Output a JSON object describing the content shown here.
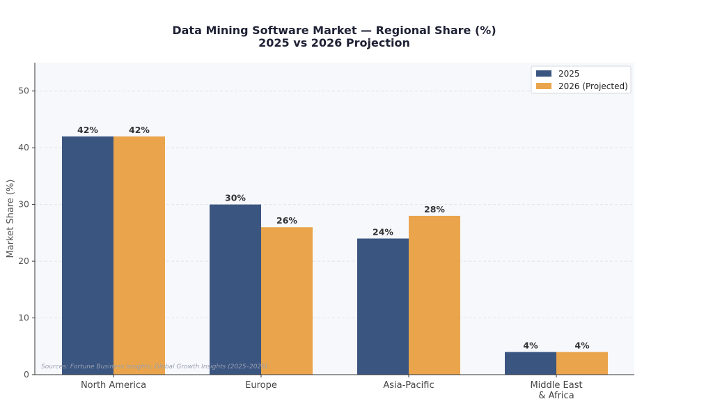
{
  "chart_data": {
    "type": "bar",
    "title": "Data Mining Software Market — Regional Share (%)",
    "subtitle": "2025 vs 2026 Projection",
    "xlabel": "",
    "ylabel": "Market Share (%)",
    "ylim": [
      0,
      55
    ],
    "yticks": [
      0,
      10,
      20,
      30,
      40,
      50
    ],
    "grid": true,
    "legend_position": "top-right",
    "categories": [
      "North America",
      "Europe",
      "Asia-Pacific",
      "Middle East\n& Africa"
    ],
    "series": [
      {
        "name": "2025",
        "values": [
          42,
          30,
          24,
          4
        ],
        "color": "#3a5580"
      },
      {
        "name": "2026 (Projected)",
        "values": [
          42,
          26,
          28,
          4
        ],
        "color": "#eaa54c"
      }
    ],
    "value_suffix": "%",
    "source": "Sources: Fortune Business Insights, Global Growth Insights (2025–2026)",
    "colors": {
      "plot_background": "#f7f8fc",
      "grid": "#dfe3ec",
      "axis": "#333333"
    }
  }
}
